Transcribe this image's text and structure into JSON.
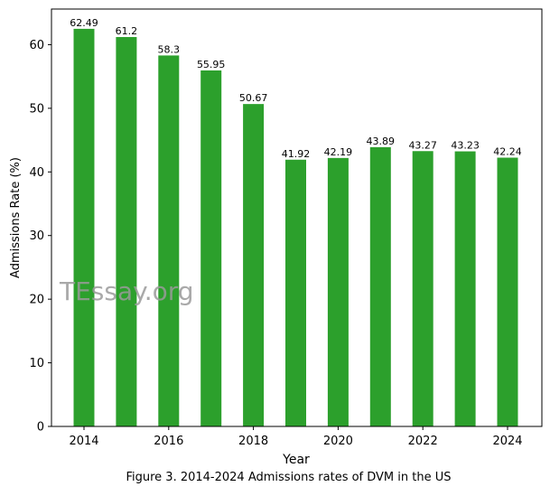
{
  "chart_data": {
    "type": "bar",
    "categories": [
      "2014",
      "2015",
      "2016",
      "2017",
      "2018",
      "2019",
      "2020",
      "2021",
      "2022",
      "2023",
      "2024"
    ],
    "values": [
      62.49,
      61.2,
      58.3,
      55.95,
      50.67,
      41.92,
      42.19,
      43.89,
      43.27,
      43.23,
      42.24
    ],
    "value_labels": [
      "62.49",
      "61.2",
      "58.3",
      "55.95",
      "50.67",
      "41.92",
      "42.19",
      "43.89",
      "43.27",
      "43.23",
      "42.24"
    ],
    "xlabel": "Year",
    "ylabel": "Admissions Rate (%)",
    "xticks": [
      "2014",
      "2016",
      "2018",
      "2020",
      "2022",
      "2024"
    ],
    "yticks": [
      "0",
      "10",
      "20",
      "30",
      "40",
      "50",
      "60"
    ],
    "ylim": [
      0,
      65.6
    ],
    "bar_color": "#2ca02c",
    "grid": false,
    "watermark": "TEssay.org"
  },
  "caption": "Figure 3. 2014-2024 Admissions rates of DVM in the US"
}
